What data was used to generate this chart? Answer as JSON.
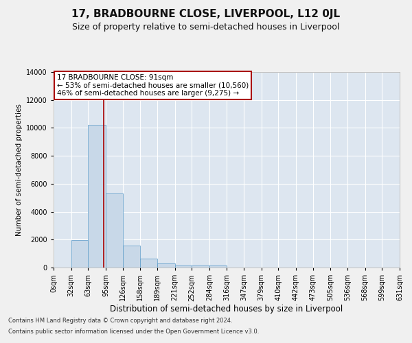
{
  "title": "17, BRADBOURNE CLOSE, LIVERPOOL, L12 0JL",
  "subtitle": "Size of property relative to semi-detached houses in Liverpool",
  "xlabel": "Distribution of semi-detached houses by size in Liverpool",
  "ylabel": "Number of semi-detached properties",
  "bin_edges": [
    0,
    32,
    63,
    95,
    126,
    158,
    189,
    221,
    252,
    284,
    316,
    347,
    379,
    410,
    442,
    473,
    505,
    536,
    568,
    599,
    631
  ],
  "bar_heights": [
    0,
    1950,
    10200,
    5300,
    1580,
    620,
    280,
    170,
    140,
    130,
    0,
    0,
    0,
    0,
    0,
    0,
    0,
    0,
    0,
    0
  ],
  "bar_color": "#c8d8e8",
  "bar_edgecolor": "#5a9ac8",
  "property_size": 91,
  "property_line_color": "#aa0000",
  "annotation_text": "17 BRADBOURNE CLOSE: 91sqm\n← 53% of semi-detached houses are smaller (10,560)\n46% of semi-detached houses are larger (9,275) →",
  "annotation_box_color": "#ffffff",
  "annotation_box_edge": "#aa0000",
  "ylim": [
    0,
    14000
  ],
  "yticks": [
    0,
    2000,
    4000,
    6000,
    8000,
    10000,
    12000,
    14000
  ],
  "xlim": [
    0,
    631
  ],
  "background_color": "#dde6f0",
  "grid_color": "#ffffff",
  "fig_facecolor": "#f0f0f0",
  "footer_line1": "Contains HM Land Registry data © Crown copyright and database right 2024.",
  "footer_line2": "Contains public sector information licensed under the Open Government Licence v3.0.",
  "title_fontsize": 11,
  "subtitle_fontsize": 9,
  "xlabel_fontsize": 8.5,
  "ylabel_fontsize": 7.5,
  "tick_fontsize": 7,
  "annotation_fontsize": 7.5,
  "footer_fontsize": 6
}
